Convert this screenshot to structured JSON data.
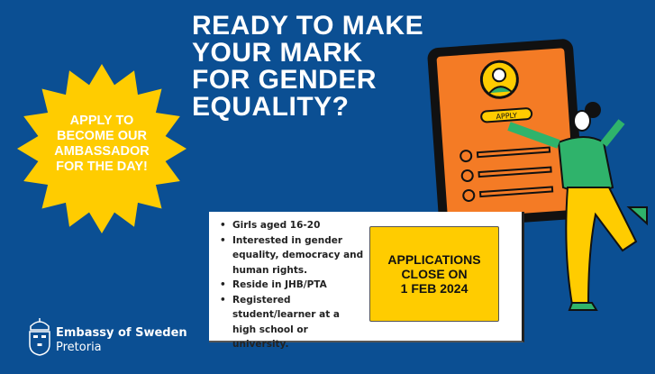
{
  "headline": [
    "READY TO MAKE",
    "YOUR MARK",
    "FOR GENDER",
    "EQUALITY?"
  ],
  "starburst": {
    "lines": [
      "APPLY TO",
      "BECOME OUR",
      "AMBASSADOR",
      "FOR THE DAY!"
    ],
    "color": "#ffcc00"
  },
  "criteria": [
    "Girls aged 16-20",
    "Interested in gender equality, democracy and human rights.",
    "Reside in JHB/PTA",
    "Registered student/learner at a high school or university."
  ],
  "deadline": [
    "APPLICATIONS",
    "CLOSE ON",
    "1 FEB 2024"
  ],
  "illustration": {
    "button_label": "APPLY",
    "icon": "tablet-with-woman-illustration"
  },
  "logo": {
    "name": "Embassy of Sweden",
    "city": "Pretoria",
    "icon": "swedish-crown-shield-icon"
  },
  "colors": {
    "background": "#0b4f93",
    "accent_yellow": "#ffcc00",
    "tablet_orange": "#f47b25"
  }
}
